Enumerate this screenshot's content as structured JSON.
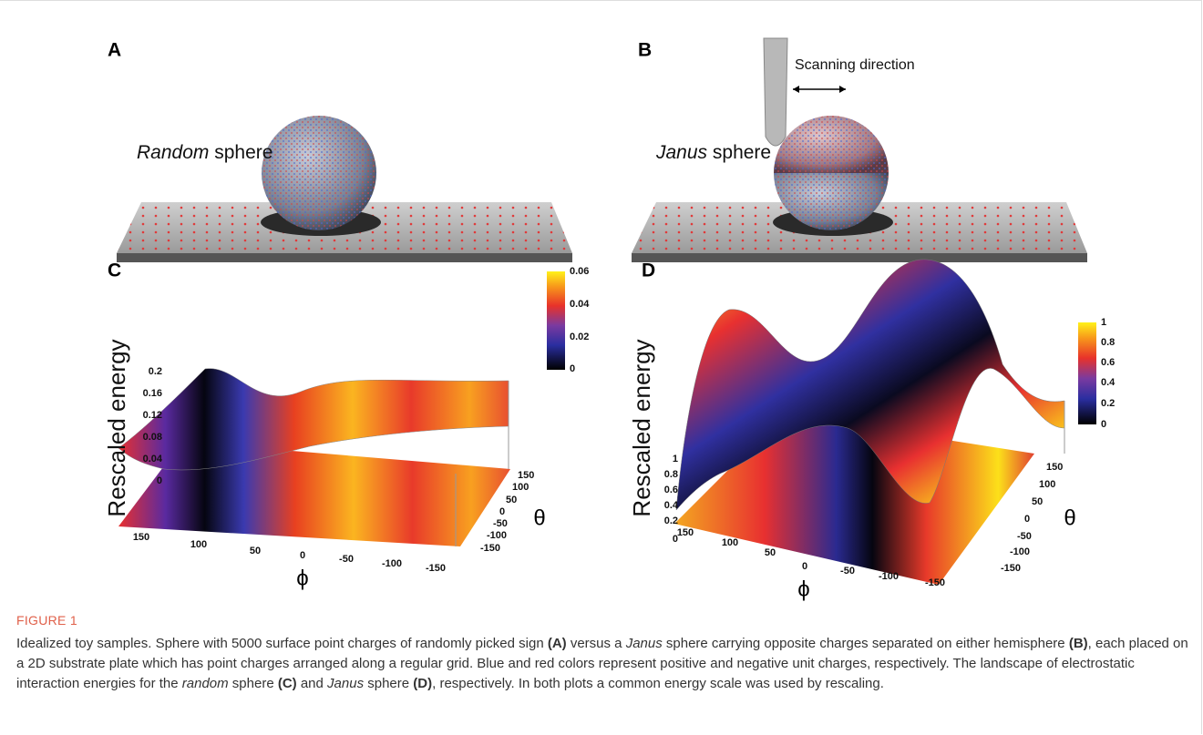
{
  "figure": {
    "panel_a": {
      "label": "A",
      "sphere_emphasis": "Random",
      "sphere_rest": "sphere"
    },
    "panel_b": {
      "label": "B",
      "sphere_emphasis": "Janus",
      "sphere_rest": "sphere",
      "scan_label": "Scanning direction"
    },
    "panel_c": {
      "label": "C",
      "z_label": "Rescaled energy",
      "x_label": "ϕ",
      "y_label": "θ",
      "zticks": [
        0.2,
        0.16,
        0.12,
        0.08,
        0.04,
        0
      ],
      "colorbar_ticks": [
        0.06,
        0.04,
        0.02,
        0
      ],
      "xticks": [
        150,
        100,
        50,
        0,
        -50,
        -100,
        -150
      ],
      "yticks": [
        150,
        100,
        50,
        0,
        -50,
        -100,
        -150
      ]
    },
    "panel_d": {
      "label": "D",
      "z_label": "Rescaled energy",
      "x_label": "ϕ",
      "y_label": "θ",
      "zticks": [
        1,
        0.8,
        0.6,
        0.4,
        0.2,
        0
      ],
      "colorbar_ticks": [
        1,
        0.8,
        0.6,
        0.4,
        0.2,
        0
      ],
      "xticks": [
        150,
        100,
        50,
        0,
        -50,
        -100,
        -150
      ],
      "yticks": [
        150,
        100,
        50,
        0,
        -50,
        -100,
        -150
      ]
    }
  },
  "caption": {
    "heading": "FIGURE 1",
    "text": [
      "Idealized toy samples. Sphere with 5000 surface point charges of randomly picked sign ",
      "(A)",
      " versus a ",
      "Janus",
      " sphere carrying opposite charges separated on either hemisphere ",
      "(B)",
      ", each placed on a 2D substrate plate which has point charges arranged along a regular grid. Blue and red colors represent positive and negative unit charges, respectively. The landscape of electrostatic interaction energies for the ",
      "random",
      " sphere ",
      "(C)",
      " and ",
      "Janus",
      " sphere ",
      "(D)",
      ", respectively. In both plots a common energy scale was used by rescaling."
    ]
  }
}
